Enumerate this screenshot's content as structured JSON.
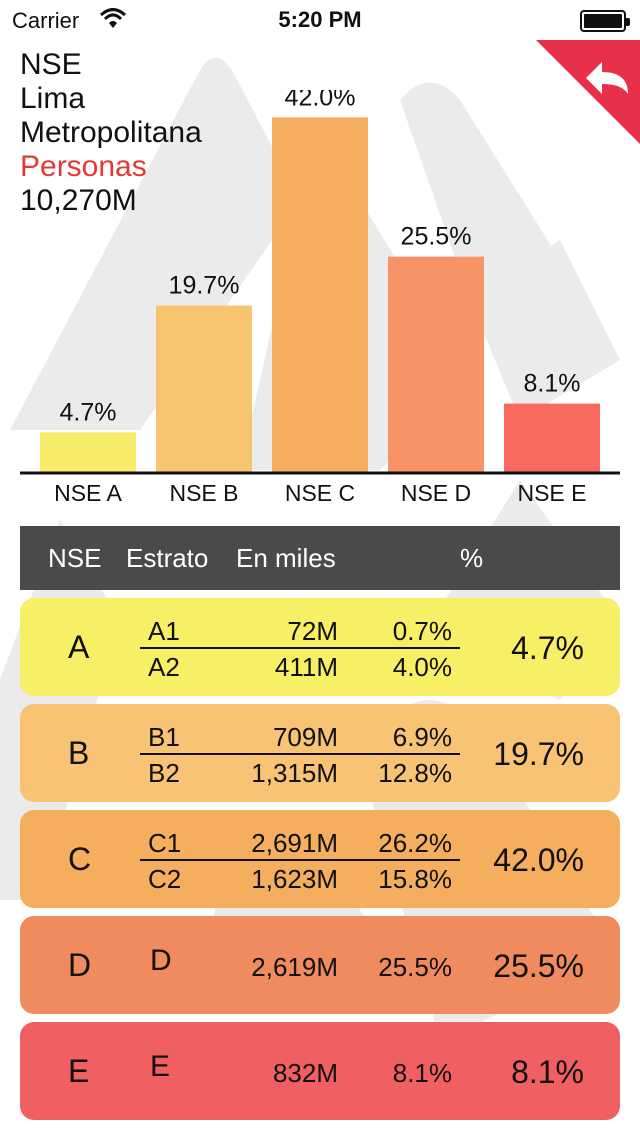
{
  "status_bar": {
    "carrier": "Carrier",
    "time": "5:20 PM"
  },
  "title": {
    "line1": "NSE",
    "line2": "Lima",
    "line3": "Metropolitana",
    "line4": "Personas",
    "line5": "10,270M"
  },
  "colors": {
    "accent": "#e23a36",
    "header": "#4a4a4a",
    "corner": "#e8304a"
  },
  "chart_data": {
    "type": "bar",
    "categories": [
      "NSE A",
      "NSE B",
      "NSE C",
      "NSE D",
      "NSE E"
    ],
    "values": [
      4.7,
      19.7,
      42.0,
      25.5,
      8.1
    ],
    "value_labels": [
      "4.7%",
      "19.7%",
      "42.0%",
      "25.5%",
      "8.1%"
    ],
    "colors": [
      "#f7ec6a",
      "#f7c56f",
      "#f5ad5f",
      "#f89368",
      "#f86a60"
    ],
    "ylim": [
      0,
      45
    ]
  },
  "table": {
    "headers": {
      "nse": "NSE",
      "estrato": "Estrato",
      "miles": "En miles",
      "pct": "%"
    },
    "rows": [
      {
        "nse": "A",
        "total": "4.7%",
        "color": "#f7ef66",
        "sub": [
          {
            "estrato": "A1",
            "miles": "72M",
            "pct": "0.7%"
          },
          {
            "estrato": "A2",
            "miles": "411M",
            "pct": "4.0%"
          }
        ]
      },
      {
        "nse": "B",
        "total": "19.7%",
        "color": "#f8c374",
        "sub": [
          {
            "estrato": "B1",
            "miles": "709M",
            "pct": "6.9%"
          },
          {
            "estrato": "B2",
            "miles": "1,315M",
            "pct": "12.8%"
          }
        ]
      },
      {
        "nse": "C",
        "total": "42.0%",
        "color": "#f4ae5e",
        "sub": [
          {
            "estrato": "C1",
            "miles": "2,691M",
            "pct": "26.2%"
          },
          {
            "estrato": "C2",
            "miles": "1,623M",
            "pct": "15.8%"
          }
        ]
      },
      {
        "nse": "D",
        "total": "25.5%",
        "color": "#ef8b5e",
        "sub": [
          {
            "estrato": "D",
            "miles": "2,619M",
            "pct": "25.5%"
          }
        ]
      },
      {
        "nse": "E",
        "total": "8.1%",
        "color": "#f05f62",
        "sub": [
          {
            "estrato": "E",
            "miles": "832M",
            "pct": "8.1%"
          }
        ]
      }
    ]
  },
  "icons": {
    "back": "back-arrow-icon",
    "wifi": "wifi-icon",
    "battery": "battery-icon"
  }
}
